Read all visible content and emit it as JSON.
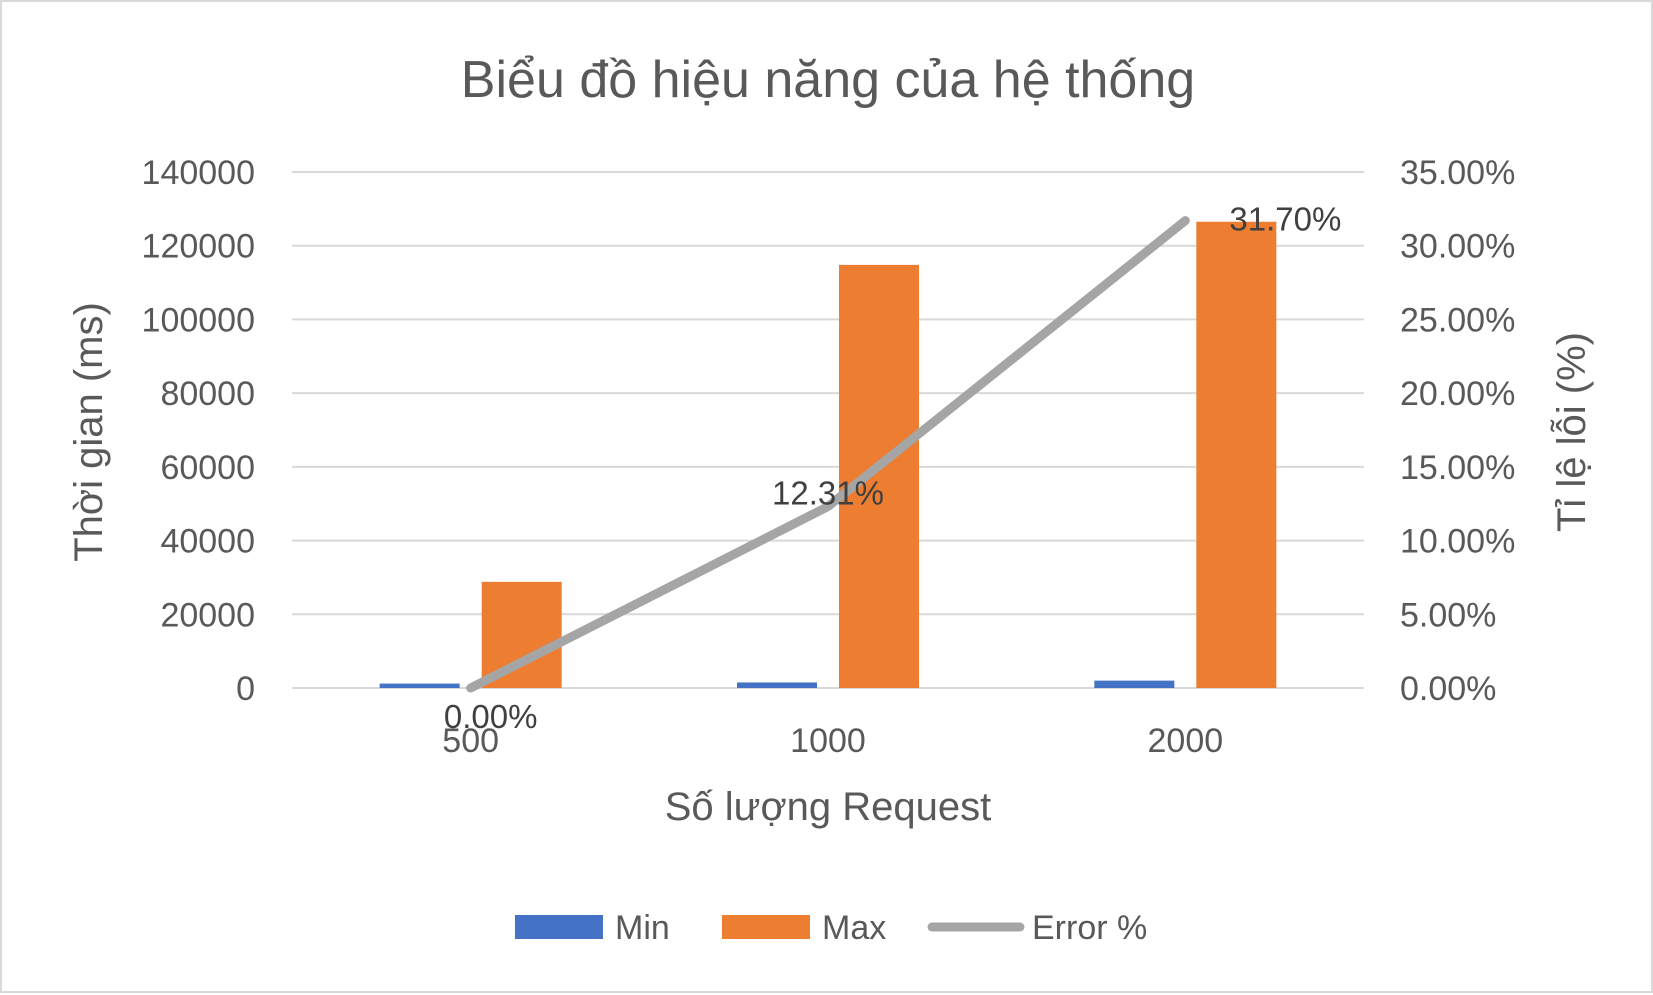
{
  "chart_data": {
    "type": "bar",
    "title": "Biểu đồ hiệu năng của hệ thống",
    "xlabel": "Số lượng Request",
    "ylabel": "Thời gian (ms)",
    "y2label": "Tỉ lệ lỗi (%)",
    "categories": [
      "500",
      "1000",
      "2000"
    ],
    "ylim": [
      0,
      140000
    ],
    "yticks": [
      "0",
      "20000",
      "40000",
      "60000",
      "80000",
      "100000",
      "120000",
      "140000"
    ],
    "y2lim": [
      0,
      0.35
    ],
    "y2ticks": [
      "0.00%",
      "5.00%",
      "10.00%",
      "15.00%",
      "20.00%",
      "25.00%",
      "30.00%",
      "35.00%"
    ],
    "grid": true,
    "legend_position": "bottom",
    "series": [
      {
        "name": "Min",
        "type": "bar",
        "axis": "left",
        "color": "#4472c4",
        "values": [
          1200,
          1500,
          2000
        ]
      },
      {
        "name": "Max",
        "type": "bar",
        "axis": "left",
        "color": "#ed7d31",
        "values": [
          28800,
          114800,
          126500
        ]
      },
      {
        "name": "Error %",
        "type": "line",
        "axis": "right",
        "color": "#a5a5a5",
        "values": [
          0.0,
          0.1231,
          0.317
        ],
        "labels": [
          "0.00%",
          "12.31%",
          "31.70%"
        ]
      }
    ]
  }
}
